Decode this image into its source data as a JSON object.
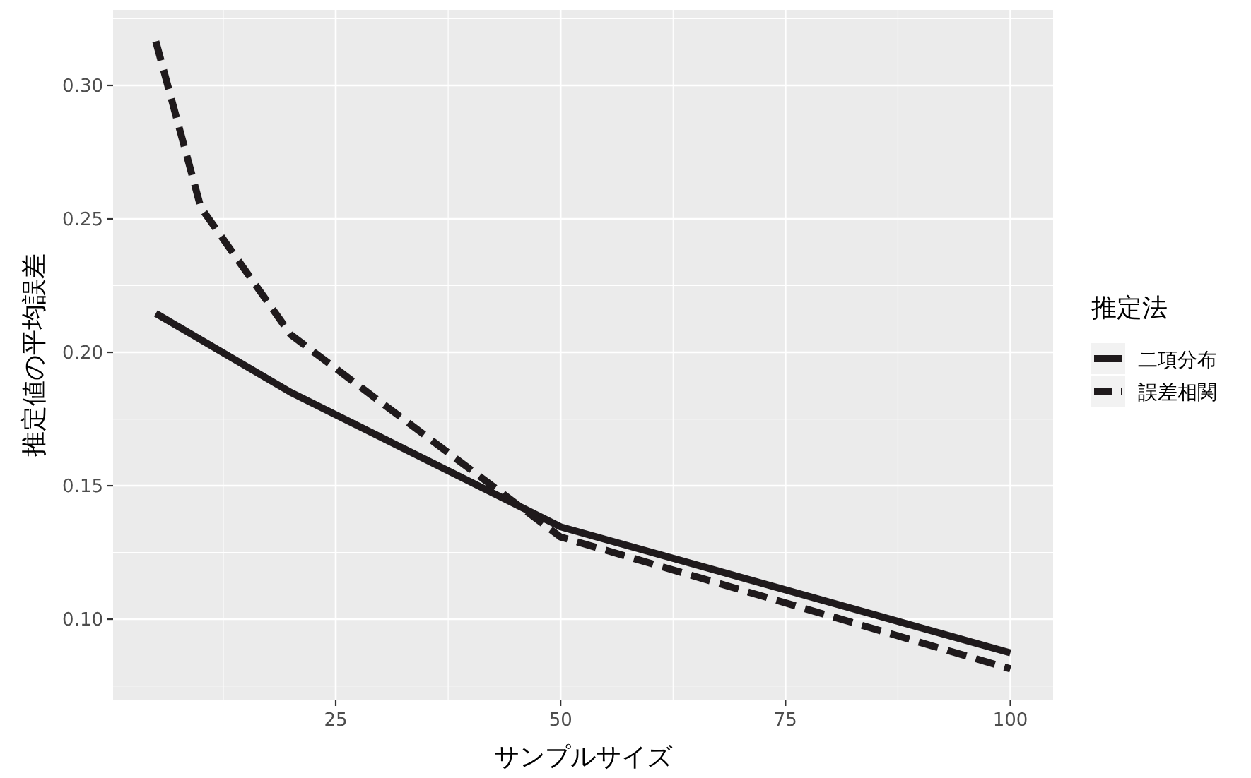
{
  "chart_data": {
    "type": "line",
    "xlabel": "サンプルサイズ",
    "ylabel": "推定値の平均誤差",
    "legend_title": "推定法",
    "x": [
      5,
      10,
      20,
      50,
      100
    ],
    "series": [
      {
        "name": "二項分布",
        "color": "#1f1a1c",
        "line_style": "solid",
        "values": [
          0.2146,
          null,
          0.185,
          0.1346,
          0.0874
        ]
      },
      {
        "name": "誤差相関",
        "color": "#1f1a1c",
        "line_style": "dashed",
        "values": [
          0.3165,
          0.2543,
          0.2066,
          0.1308,
          0.0814
        ]
      }
    ],
    "xlim": [
      0.25,
      104.75
    ],
    "ylim": [
      0.0696,
      0.3283
    ],
    "xticks": [
      25,
      50,
      75,
      100
    ],
    "yticks": [
      {
        "value": 0.1,
        "label": "0.10"
      },
      {
        "value": 0.15,
        "label": "0.15"
      },
      {
        "value": 0.2,
        "label": "0.20"
      },
      {
        "value": 0.25,
        "label": "0.25"
      },
      {
        "value": 0.3,
        "label": "0.30"
      }
    ],
    "grid": true,
    "legend": "right"
  }
}
